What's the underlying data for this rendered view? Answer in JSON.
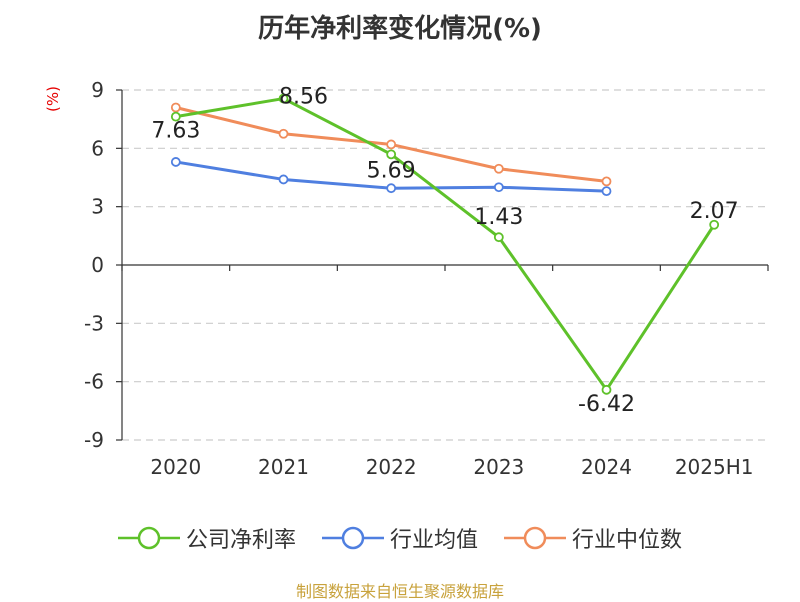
{
  "chart_data": {
    "type": "line",
    "title": "历年净利率变化情况(%)",
    "ylabel": "(%)",
    "xlabel": "",
    "categories": [
      "2020",
      "2021",
      "2022",
      "2023",
      "2024",
      "2025H1"
    ],
    "ylim": [
      -9,
      9
    ],
    "yticks": [
      "9",
      "6",
      "3",
      "0",
      "-3",
      "-6",
      "-9"
    ],
    "grid": true,
    "legend_position": "bottom",
    "series": [
      {
        "name": "公司净利率",
        "color": "#5ec12a",
        "values": [
          7.63,
          8.56,
          5.69,
          1.43,
          -6.42,
          2.07
        ],
        "labels": [
          "7.63",
          "8.56",
          "5.69",
          "1.43",
          "-6.42",
          "2.07"
        ]
      },
      {
        "name": "行业均值",
        "color": "#4f7fe0",
        "values": [
          5.3,
          4.4,
          3.95,
          4.0,
          3.8,
          null
        ]
      },
      {
        "name": "行业中位数",
        "color": "#f08c5a",
        "values": [
          8.1,
          6.75,
          6.2,
          4.95,
          4.3,
          null
        ]
      }
    ]
  },
  "footer": {
    "source": "制图数据来自恒生聚源数据库"
  }
}
